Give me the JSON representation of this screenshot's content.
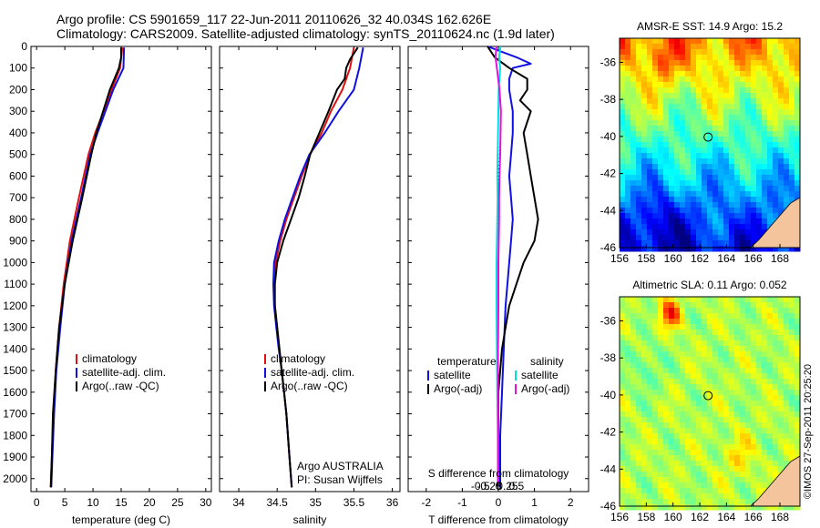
{
  "header": {
    "line1": "Argo profile: CS 5901659_117 22-Jun-2011 20110626_32 40.034S 162.626E",
    "line2": "Climatology: CARS2009. Satellite-adjusted climatology: synTS_20110624.nc (1.9d later)"
  },
  "stamp": "©IMOS 27-Sep-2011 20:25:20",
  "colors": {
    "red": "#e01010",
    "blue": "#1010e0",
    "black": "#000000",
    "cyan": "#00e0e0",
    "magenta": "#e010e0",
    "land": "#f4c49c"
  },
  "chart_data": [
    {
      "type": "line",
      "panel": "temperature",
      "xlabel": "temperature (deg C)",
      "xlim": [
        -1,
        31
      ],
      "xticks": [
        0,
        5,
        10,
        15,
        20,
        25,
        30
      ],
      "xtick_labels": [
        "0",
        "5",
        "10",
        "15",
        "20",
        "25",
        "30"
      ],
      "ylim": [
        2060,
        0
      ],
      "yticks": [
        0,
        100,
        200,
        300,
        400,
        500,
        600,
        700,
        800,
        900,
        1000,
        1100,
        1200,
        1300,
        1400,
        1500,
        1600,
        1700,
        1800,
        1900,
        2000
      ],
      "ytick_labels": [
        "0",
        "100",
        "200",
        "300",
        "400",
        "500",
        "600",
        "700",
        "800",
        "900",
        "1000",
        "1100",
        "1200",
        "1300",
        "1400",
        "1500",
        "1600",
        "1700",
        "1800",
        "1900",
        "2000"
      ],
      "legend": [
        "climatology",
        "satellite-adj. clim.",
        "Argo(..raw -QC)"
      ],
      "series": [
        {
          "name": "climatology",
          "color": "red",
          "depth": [
            5,
            100,
            200,
            300,
            400,
            500,
            700,
            900,
            1100,
            1300,
            1500,
            1700,
            1900,
            2040
          ],
          "values": [
            15.2,
            14.8,
            13.3,
            11.9,
            10.4,
            9.2,
            7.5,
            5.9,
            4.8,
            4.0,
            3.4,
            3.0,
            2.7,
            2.5
          ]
        },
        {
          "name": "satellite-adj. clim.",
          "color": "blue",
          "depth": [
            5,
            100,
            200,
            300,
            400,
            500,
            700,
            900,
            1100,
            1300,
            1500,
            1700,
            1900,
            2040
          ],
          "values": [
            15.5,
            15.4,
            13.6,
            12.2,
            10.8,
            9.5,
            7.9,
            6.2,
            5.0,
            4.2,
            3.5,
            3.1,
            2.8,
            2.6
          ]
        },
        {
          "name": "Argo(..raw -QC)",
          "color": "black",
          "depth": [
            5,
            50,
            100,
            150,
            200,
            300,
            400,
            500,
            700,
            900,
            1100,
            1300,
            1500,
            1700,
            1900,
            2040
          ],
          "values": [
            15.0,
            15.0,
            14.6,
            13.8,
            13.0,
            11.8,
            10.6,
            9.7,
            8.1,
            6.4,
            5.0,
            4.0,
            3.4,
            2.9,
            2.7,
            2.5
          ]
        }
      ]
    },
    {
      "type": "line",
      "panel": "salinity",
      "xlabel": "salinity",
      "xlim": [
        33.75,
        36.1
      ],
      "xticks": [
        34,
        34.5,
        35,
        35.5,
        36
      ],
      "xtick_labels": [
        "34",
        "34.5",
        "35",
        "35.5",
        "36"
      ],
      "ylim": [
        2060,
        0
      ],
      "legend": [
        "climatology",
        "satellite-adj. clim.",
        "Argo(..raw -QC)"
      ],
      "annotation": [
        "Argo AUSTRALIA",
        "PI: Susan Wijffels"
      ],
      "series": [
        {
          "name": "climatology",
          "color": "red",
          "depth": [
            5,
            100,
            200,
            300,
            400,
            500,
            600,
            700,
            800,
            900,
            1000,
            1100,
            1200,
            1300,
            1400,
            1500,
            1600,
            1700,
            1800,
            1900,
            2040
          ],
          "values": [
            35.5,
            35.45,
            35.35,
            35.2,
            35.08,
            34.93,
            34.82,
            34.72,
            34.62,
            34.54,
            34.48,
            34.46,
            34.47,
            34.5,
            34.53,
            34.56,
            34.59,
            34.62,
            34.64,
            34.66,
            34.69
          ]
        },
        {
          "name": "satellite-adj. clim.",
          "color": "blue",
          "depth": [
            5,
            100,
            200,
            300,
            400,
            500,
            600,
            700,
            800,
            900,
            1000,
            1100,
            1200,
            1300,
            1400,
            1500,
            1600,
            1700,
            1800,
            1900,
            2040
          ],
          "values": [
            35.62,
            35.57,
            35.5,
            35.3,
            35.12,
            34.92,
            34.8,
            34.7,
            34.6,
            34.52,
            34.46,
            34.45,
            34.46,
            34.49,
            34.52,
            34.56,
            34.59,
            34.62,
            34.64,
            34.66,
            34.69
          ]
        },
        {
          "name": "Argo(..raw -QC)",
          "color": "black",
          "depth": [
            5,
            60,
            100,
            150,
            200,
            300,
            400,
            500,
            600,
            700,
            800,
            900,
            1000,
            1100,
            1200,
            1300,
            1400,
            1500,
            1600,
            1700,
            1800,
            1900,
            2040
          ],
          "values": [
            35.55,
            35.45,
            35.4,
            35.38,
            35.28,
            35.17,
            35.05,
            34.93,
            34.86,
            34.78,
            34.68,
            34.58,
            34.5,
            34.47,
            34.47,
            34.5,
            34.53,
            34.56,
            34.59,
            34.62,
            34.64,
            34.66,
            34.69
          ]
        }
      ]
    },
    {
      "type": "line",
      "panel": "difference",
      "xlabel": "T difference from climatology",
      "xlim": [
        -2.5,
        2.5
      ],
      "xticks": [
        -2,
        -1,
        0,
        1,
        2
      ],
      "xtick_labels": [
        "-2",
        "-1",
        "0",
        "1",
        "2"
      ],
      "top_axis_label": "S difference from climatology",
      "top_xticks": [
        -0.5,
        -0.25,
        0,
        0.25,
        0.5
      ],
      "top_xtick_labels": [
        "-0.5",
        "-0.25",
        "0",
        "0.25",
        "0.5"
      ],
      "ylim": [
        2060,
        0
      ],
      "legend_groups": [
        {
          "heading": "temperature",
          "entries": [
            "satellite",
            "Argo(-adj)"
          ]
        },
        {
          "heading": "salinity",
          "entries": [
            "satellite",
            "Argo(-adj)"
          ]
        }
      ],
      "series": [
        {
          "name": "T satellite",
          "color": "blue",
          "depth": [
            0,
            50,
            80,
            100,
            150,
            200,
            300,
            400,
            500,
            600,
            700,
            800,
            900,
            1000,
            1200,
            1400,
            1600,
            1800,
            2040
          ],
          "values": [
            -0.3,
            0.5,
            0.9,
            0.4,
            0.3,
            0.3,
            0.4,
            0.4,
            0.35,
            0.3,
            0.35,
            0.4,
            0.35,
            0.3,
            0.2,
            0.15,
            0.1,
            0.05,
            0.05
          ]
        },
        {
          "name": "T Argo(-adj)",
          "color": "black",
          "depth": [
            0,
            50,
            100,
            150,
            200,
            250,
            300,
            400,
            500,
            600,
            700,
            800,
            900,
            1000,
            1100,
            1200,
            1300,
            1400,
            1600,
            1800,
            2040
          ],
          "values": [
            -0.3,
            -0.1,
            0.3,
            0.8,
            0.8,
            0.6,
            0.9,
            0.7,
            0.8,
            0.9,
            1.0,
            1.1,
            1.0,
            0.7,
            0.5,
            0.3,
            0.2,
            0.1,
            0.0,
            0.0,
            0.0
          ]
        },
        {
          "name": "S satellite",
          "color": "cyan",
          "depth": [
            0,
            50,
            100,
            200,
            300,
            400,
            500,
            600,
            700,
            800,
            900,
            1000,
            1200,
            1400,
            1600,
            1800,
            2040
          ],
          "values": [
            0.06,
            0.02,
            0.05,
            0.01,
            0.0,
            -0.01,
            -0.02,
            -0.03,
            -0.02,
            -0.03,
            -0.04,
            -0.05,
            -0.05,
            -0.04,
            -0.03,
            -0.02,
            -0.02
          ]
        },
        {
          "name": "S Argo(-adj)",
          "color": "magenta",
          "depth": [
            0,
            50,
            100,
            200,
            300,
            400,
            500,
            600,
            700,
            800,
            900,
            1000,
            1200,
            1400,
            1600,
            1800,
            2040
          ],
          "values": [
            -0.05,
            -0.08,
            -0.04,
            0.03,
            0.07,
            0.06,
            0.05,
            0.03,
            0.02,
            0.02,
            0.01,
            0.0,
            0.0,
            -0.01,
            -0.01,
            0.0,
            0.0
          ]
        }
      ]
    },
    {
      "type": "heatmap",
      "panel": "sst_map",
      "title": "AMSR-E SST: 14.9  Argo: 15.2",
      "xlim": [
        156,
        169.5
      ],
      "ylim": [
        -46,
        -34.7
      ],
      "xticks": [
        156,
        158,
        160,
        162,
        164,
        166,
        168
      ],
      "xtick_labels": [
        "156",
        "158",
        "160",
        "162",
        "164",
        "166",
        "168"
      ],
      "yticks": [
        -36,
        -38,
        -40,
        -42,
        -44,
        -46
      ],
      "ytick_labels": [
        "-36",
        "-38",
        "-40",
        "-42",
        "-44",
        "-46"
      ],
      "marker": {
        "lon": 162.626,
        "lat": -40.034
      }
    },
    {
      "type": "heatmap",
      "panel": "sla_map",
      "title": "Altimetric SLA: 0.11  Argo: 0.052",
      "xlim": [
        156,
        169.5
      ],
      "ylim": [
        -46,
        -34.7
      ],
      "xticks": [
        156,
        158,
        160,
        162,
        164,
        166,
        168
      ],
      "xtick_labels": [
        "156",
        "158",
        "160",
        "162",
        "164",
        "166",
        "168"
      ],
      "yticks": [
        -36,
        -38,
        -40,
        -42,
        -44,
        -46
      ],
      "ytick_labels": [
        "-36",
        "-38",
        "-40",
        "-42",
        "-44",
        "-46"
      ],
      "marker": {
        "lon": 162.626,
        "lat": -40.034
      }
    }
  ]
}
